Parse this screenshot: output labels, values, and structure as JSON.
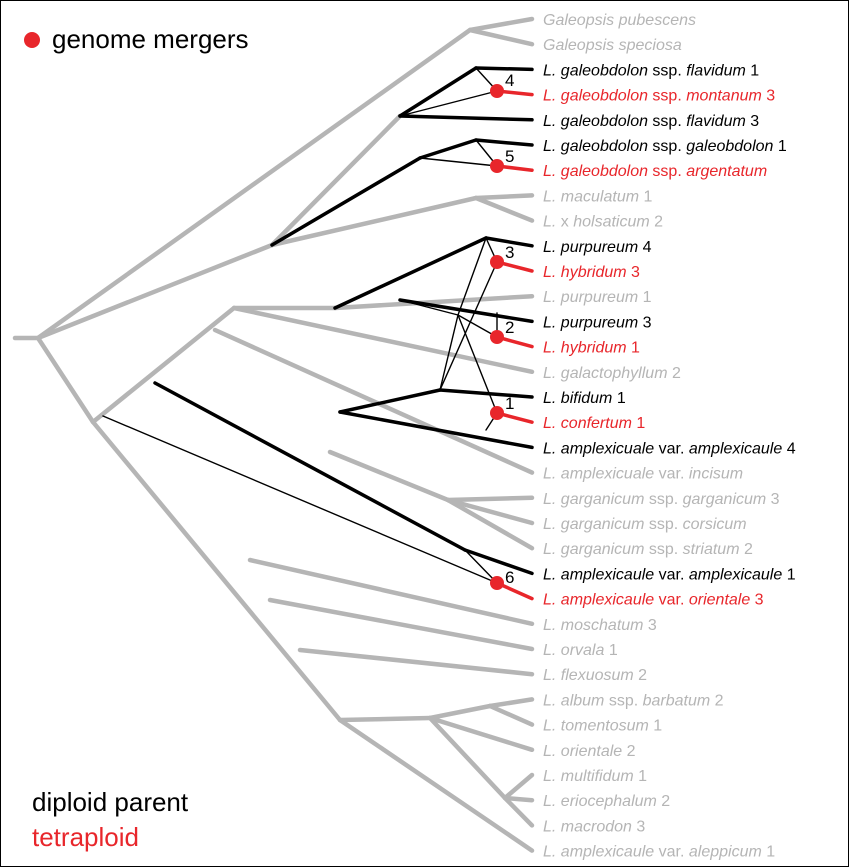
{
  "legend": {
    "title": "genome mergers",
    "diploid": "diploid parent",
    "tetraploid": "tetraploid",
    "colors": {
      "diploid": "#000000",
      "tetraploid": "#e8262b",
      "other": "#b5b5b5"
    }
  },
  "taxa": [
    {
      "italic": "Galeopsis pubescens",
      "rest": "",
      "num": "",
      "kind": "other"
    },
    {
      "italic": "Galeopsis speciosa",
      "rest": "",
      "num": "",
      "kind": "other"
    },
    {
      "italic": "L. galeobdolon",
      "rest": " ssp. ",
      "italic2": "flavidum",
      "num": " 1",
      "kind": "diploid"
    },
    {
      "italic": "L. galeobdolon",
      "rest": " ssp. ",
      "italic2": "montanum",
      "num": " 3",
      "kind": "tetraploid"
    },
    {
      "italic": "L. galeobdolon",
      "rest": " ssp. ",
      "italic2": "flavidum",
      "num": " 3",
      "kind": "diploid"
    },
    {
      "italic": "L. galeobdolon",
      "rest": " ssp. ",
      "italic2": "galeobdolon",
      "num": " 1",
      "kind": "diploid"
    },
    {
      "italic": "L. galeobdolon",
      "rest": " ssp. ",
      "italic2": "argentatum",
      "num": "",
      "kind": "tetraploid"
    },
    {
      "italic": "L. maculatum",
      "rest": "",
      "num": " 1",
      "kind": "other"
    },
    {
      "italic": "L.",
      "rest": " x ",
      "italic2": "holsaticum",
      "num": " 2",
      "kind": "other"
    },
    {
      "italic": "L. purpureum",
      "rest": "",
      "num": " 4",
      "kind": "diploid"
    },
    {
      "italic": "L. hybridum",
      "rest": "",
      "num": " 3",
      "kind": "tetraploid"
    },
    {
      "italic": "L. purpureum",
      "rest": "",
      "num": " 1",
      "kind": "other"
    },
    {
      "italic": "L. purpureum",
      "rest": "",
      "num": " 3",
      "kind": "diploid"
    },
    {
      "italic": "L. hybridum",
      "rest": "",
      "num": " 1",
      "kind": "tetraploid"
    },
    {
      "italic": "L. galactophyllum",
      "rest": "",
      "num": " 2",
      "kind": "other"
    },
    {
      "italic": "L. bifidum",
      "rest": "",
      "num": " 1",
      "kind": "diploid"
    },
    {
      "italic": "L. confertum",
      "rest": "",
      "num": " 1",
      "kind": "tetraploid"
    },
    {
      "italic": "L. amplexicuale",
      "rest": " var. ",
      "italic2": "amplexicaule",
      "num": " 4",
      "kind": "diploid"
    },
    {
      "italic": "L. amplexicuale",
      "rest": " var. ",
      "italic2": "incisum",
      "num": "",
      "kind": "other"
    },
    {
      "italic": "L. garganicum",
      "rest": " ssp. ",
      "italic2": "garganicum",
      "num": " 3",
      "kind": "other"
    },
    {
      "italic": "L. garganicum",
      "rest": " ssp. ",
      "italic2": "corsicum",
      "num": "",
      "kind": "other"
    },
    {
      "italic": "L. garganicum",
      "rest": " ssp. ",
      "italic2": "striatum",
      "num": " 2",
      "kind": "other"
    },
    {
      "italic": "L. amplexicaule",
      "rest": " var. ",
      "italic2": "amplexicaule",
      "num": " 1",
      "kind": "diploid"
    },
    {
      "italic": "L. amplexicaule",
      "rest": " var. ",
      "italic2": "orientale",
      "num": "  3",
      "kind": "tetraploid"
    },
    {
      "italic": "L. moschatum",
      "rest": "",
      "num": " 3",
      "kind": "other"
    },
    {
      "italic": "L. orvala",
      "rest": "",
      "num": " 1",
      "kind": "other"
    },
    {
      "italic": "L. flexuosum",
      "rest": "",
      "num": " 2",
      "kind": "other"
    },
    {
      "italic": "L. album",
      "rest": " ssp. ",
      "italic2": "barbatum",
      "num": " 2",
      "kind": "other"
    },
    {
      "italic": "L. tomentosum",
      "rest": "",
      "num": " 1",
      "kind": "other"
    },
    {
      "italic": "L. orientale",
      "rest": "",
      "num": " 2",
      "kind": "other"
    },
    {
      "italic": "L. multifidum",
      "rest": "",
      "num": " 1",
      "kind": "other"
    },
    {
      "italic": "L. eriocephalum",
      "rest": "",
      "num": " 2",
      "kind": "other"
    },
    {
      "italic": "L. macrodon",
      "rest": "",
      "num": " 3",
      "kind": "other"
    },
    {
      "italic": "L. amplexicaule",
      "rest": " var. ",
      "italic2": "aleppicum",
      "num": " 1",
      "kind": "other"
    }
  ],
  "merger_labels": [
    "4",
    "5",
    "3",
    "2",
    "1",
    "6"
  ]
}
